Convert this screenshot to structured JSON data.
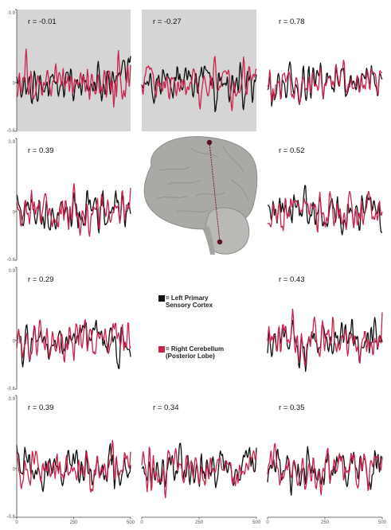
{
  "figure": {
    "line_colors": {
      "sensory": "#111111",
      "cerebellum": "#c8244c"
    },
    "shaded_panel_color": "#d5d5d5"
  },
  "legend": [
    {
      "swatch": "#111111",
      "text": "= Left Primary\nSensory Cortex"
    },
    {
      "swatch": "#c8244c",
      "text": "= Right Cerebellum\n(Posterior Lobe)"
    }
  ],
  "chart_data": {
    "type": "line",
    "x_range": [
      0,
      500
    ],
    "y_range": [
      -0.6,
      0.9
    ],
    "x_ticks": [
      "0",
      "250",
      "500"
    ],
    "y_ticks": [
      "0.9",
      "0",
      "-0.6"
    ],
    "series_colors": [
      "#111111",
      "#c8244c"
    ],
    "grid": false,
    "panels": [
      {
        "label": "r = -0.01",
        "r": -0.01,
        "shaded": true
      },
      {
        "label": "r = -0.27",
        "r": -0.27,
        "shaded": true
      },
      {
        "label": "r = 0.78",
        "r": 0.78,
        "shaded": false
      },
      {
        "label": "r = 0.39",
        "r": 0.39,
        "shaded": false
      },
      {
        "label": "r = 0.52",
        "r": 0.52,
        "shaded": false
      },
      {
        "label": "r = 0.29",
        "r": 0.29,
        "shaded": false
      },
      {
        "label": "r = 0.43",
        "r": 0.43,
        "shaded": false
      },
      {
        "label": "r = 0.39",
        "r": 0.39,
        "shaded": false
      },
      {
        "label": "r = 0.34",
        "r": 0.34,
        "shaded": false
      },
      {
        "label": "r = 0.35",
        "r": 0.35,
        "shaded": false
      }
    ]
  }
}
